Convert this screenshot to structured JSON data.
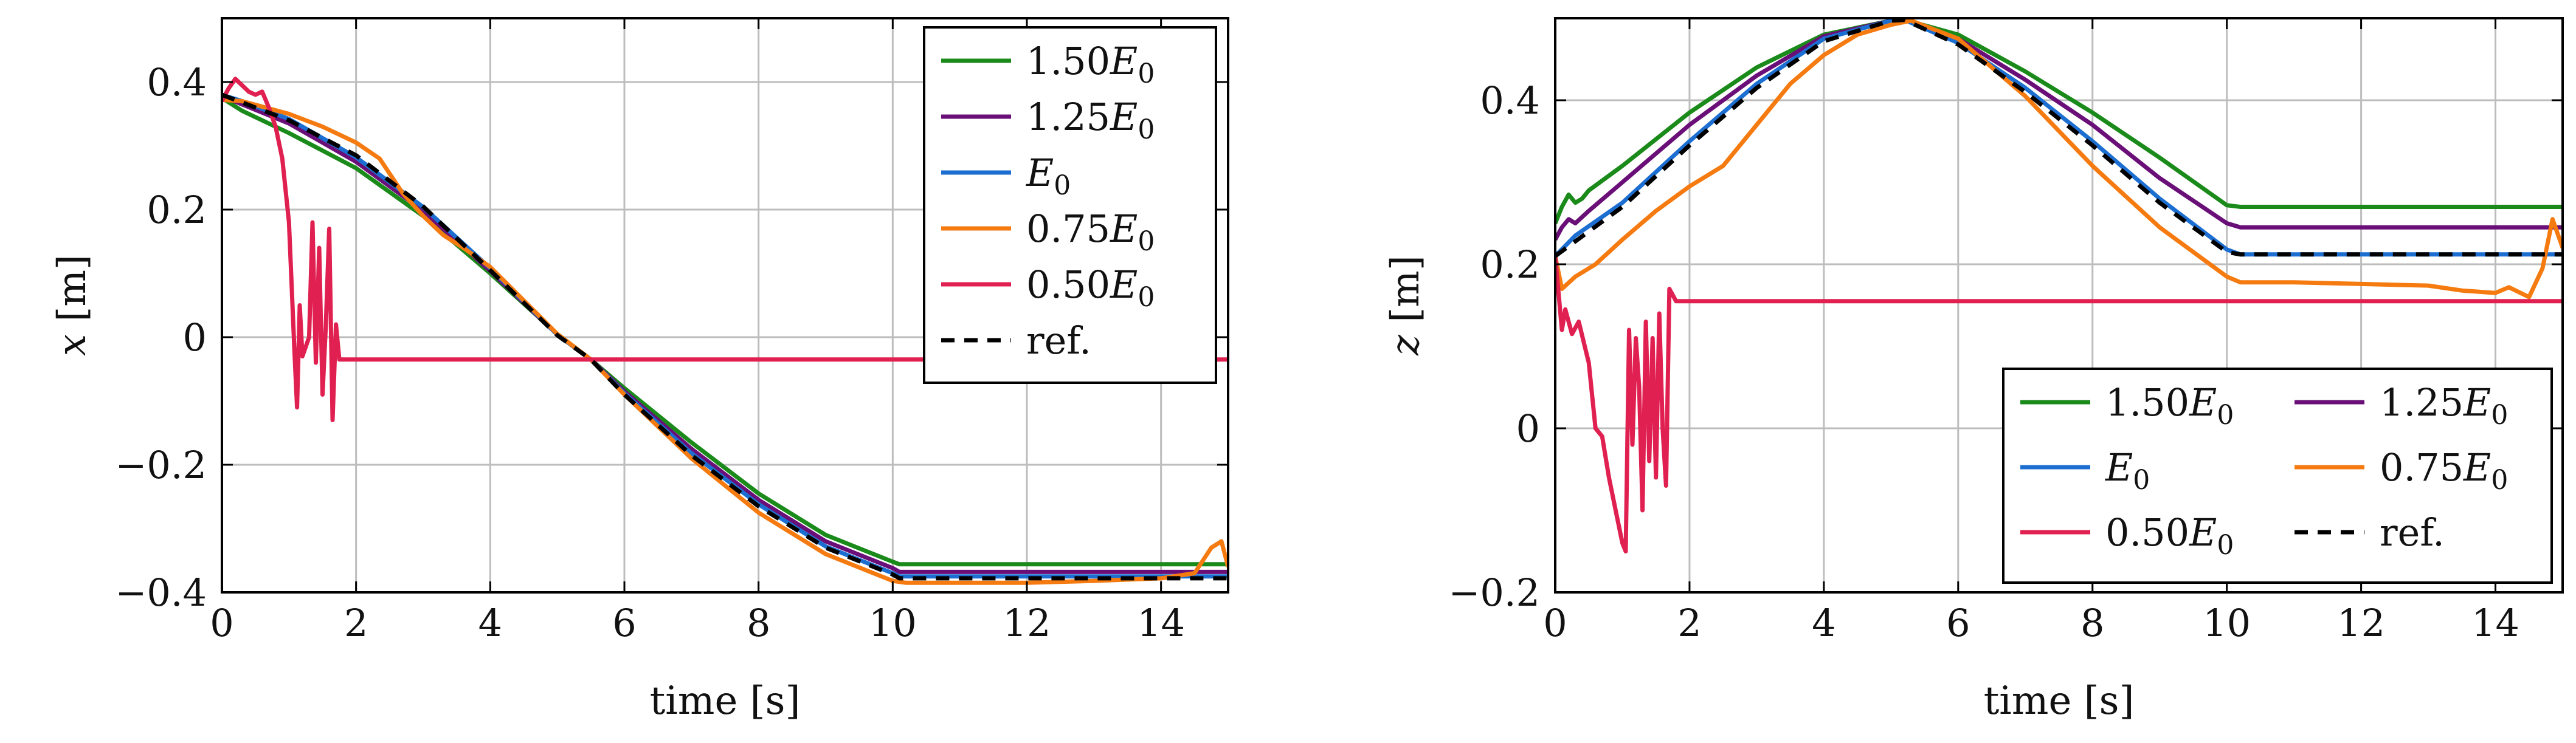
{
  "chart_data": [
    {
      "type": "line",
      "xlabel": "time [s]",
      "ylabel_var": "x",
      "ylabel_unit": "[m]",
      "xlim": [
        0,
        15
      ],
      "ylim": [
        -0.4,
        0.5
      ],
      "x_ticks": [
        0,
        2,
        4,
        6,
        8,
        10,
        12,
        14
      ],
      "x_tick_labels": [
        "0",
        "2",
        "4",
        "6",
        "8",
        "10",
        "12",
        "14"
      ],
      "y_ticks": [
        -0.4,
        -0.2,
        0,
        0.2,
        0.4
      ],
      "y_tick_labels": [
        "−0.4",
        "−0.2",
        "0",
        "0.2",
        "0.4"
      ],
      "grid": true,
      "legend_placement": "top-right",
      "legend_columns": 1,
      "series": [
        {
          "name": "1.50E0",
          "coef": "1.50",
          "color": "#1a8a1a",
          "dash": false,
          "x": [
            0,
            0.3,
            1,
            2,
            3,
            4,
            5,
            5.5,
            6,
            7,
            8,
            9,
            10,
            10.1,
            15
          ],
          "y": [
            0.375,
            0.355,
            0.32,
            0.265,
            0.19,
            0.1,
            0.005,
            -0.035,
            -0.08,
            -0.165,
            -0.245,
            -0.31,
            -0.352,
            -0.356,
            -0.356
          ]
        },
        {
          "name": "1.25E0",
          "coef": "1.25",
          "color": "#6a0f78",
          "dash": false,
          "x": [
            0,
            0.3,
            1,
            2,
            3,
            4,
            5,
            5.5,
            6,
            7,
            8,
            9,
            10,
            10.1,
            15
          ],
          "y": [
            0.378,
            0.365,
            0.335,
            0.275,
            0.198,
            0.104,
            0.004,
            -0.035,
            -0.085,
            -0.175,
            -0.255,
            -0.32,
            -0.362,
            -0.368,
            -0.368
          ]
        },
        {
          "name": "E0",
          "coef": "",
          "color": "#1c6fd1",
          "dash": false,
          "x": [
            0,
            0.3,
            1,
            2,
            3,
            4,
            5,
            5.5,
            6,
            7,
            8,
            9,
            10,
            10.1,
            15
          ],
          "y": [
            0.38,
            0.37,
            0.342,
            0.282,
            0.204,
            0.108,
            0.004,
            -0.035,
            -0.088,
            -0.182,
            -0.262,
            -0.328,
            -0.37,
            -0.375,
            -0.375
          ]
        },
        {
          "name": "0.75E0",
          "coef": "0.75",
          "color": "#f57a10",
          "dash": false,
          "x": [
            0,
            0.3,
            1,
            1.5,
            2,
            2.35,
            2.7,
            3,
            3.3,
            3.6,
            4,
            5,
            5.5,
            6,
            7,
            8,
            9,
            10,
            10.2,
            11,
            12,
            13,
            14,
            14.5,
            14.75,
            14.9,
            15
          ],
          "y": [
            0.372,
            0.37,
            0.35,
            0.33,
            0.305,
            0.28,
            0.225,
            0.19,
            0.16,
            0.14,
            0.11,
            0.005,
            -0.035,
            -0.09,
            -0.19,
            -0.275,
            -0.34,
            -0.382,
            -0.385,
            -0.385,
            -0.385,
            -0.382,
            -0.378,
            -0.37,
            -0.33,
            -0.32,
            -0.36
          ]
        },
        {
          "name": "0.50E0",
          "coef": "0.50",
          "color": "#e02050",
          "dash": false,
          "x": [
            0,
            0.1,
            0.2,
            0.3,
            0.4,
            0.5,
            0.6,
            0.7,
            0.8,
            0.9,
            1.0,
            1.08,
            1.12,
            1.16,
            1.2,
            1.3,
            1.35,
            1.4,
            1.45,
            1.5,
            1.55,
            1.6,
            1.65,
            1.7,
            1.75,
            1.85,
            15
          ],
          "y": [
            0.37,
            0.39,
            0.405,
            0.395,
            0.385,
            0.38,
            0.385,
            0.36,
            0.33,
            0.28,
            0.18,
            -0.02,
            -0.11,
            0.05,
            -0.03,
            0.0,
            0.18,
            -0.04,
            0.14,
            -0.09,
            0.02,
            0.17,
            -0.13,
            0.02,
            -0.035,
            -0.035,
            -0.035
          ]
        },
        {
          "name": "ref.",
          "coef": "",
          "color": "#000000",
          "dash": true,
          "x": [
            0,
            1,
            2,
            3,
            4,
            5,
            5.5,
            6,
            7,
            8,
            9,
            10,
            10.1,
            15
          ],
          "y": [
            0.38,
            0.34,
            0.285,
            0.205,
            0.105,
            0.003,
            -0.035,
            -0.09,
            -0.185,
            -0.265,
            -0.33,
            -0.372,
            -0.378,
            -0.378
          ]
        }
      ]
    },
    {
      "type": "line",
      "xlabel": "time [s]",
      "ylabel_var": "z",
      "ylabel_unit": "[m]",
      "xlim": [
        0,
        15
      ],
      "ylim": [
        -0.2,
        0.5
      ],
      "x_ticks": [
        0,
        2,
        4,
        6,
        8,
        10,
        12,
        14
      ],
      "x_tick_labels": [
        "0",
        "2",
        "4",
        "6",
        "8",
        "10",
        "12",
        "14"
      ],
      "y_ticks": [
        -0.2,
        0,
        0.2,
        0.4
      ],
      "y_tick_labels": [
        "−0.2",
        "0",
        "0.2",
        "0.4"
      ],
      "grid": true,
      "legend_placement": "bottom-right",
      "legend_columns": 2,
      "series": [
        {
          "name": "1.50E0",
          "coef": "1.50",
          "color": "#1a8a1a",
          "dash": false,
          "x": [
            0,
            0.1,
            0.2,
            0.3,
            0.4,
            0.5,
            1,
            2,
            3,
            4,
            5,
            5.2,
            6,
            7,
            8,
            9,
            10,
            10.2,
            15
          ],
          "y": [
            0.25,
            0.27,
            0.285,
            0.275,
            0.28,
            0.29,
            0.32,
            0.385,
            0.44,
            0.48,
            0.497,
            0.498,
            0.48,
            0.435,
            0.385,
            0.33,
            0.272,
            0.27,
            0.27
          ]
        },
        {
          "name": "1.25E0",
          "coef": "1.25",
          "color": "#6a0f78",
          "dash": false,
          "x": [
            0,
            0.1,
            0.2,
            0.3,
            0.5,
            1,
            2,
            3,
            4,
            5,
            5.2,
            6,
            7,
            8,
            9,
            10,
            10.2,
            15
          ],
          "y": [
            0.23,
            0.245,
            0.255,
            0.25,
            0.265,
            0.3,
            0.37,
            0.43,
            0.478,
            0.497,
            0.498,
            0.475,
            0.425,
            0.37,
            0.305,
            0.25,
            0.245,
            0.245
          ]
        },
        {
          "name": "E0",
          "coef": "",
          "color": "#1c6fd1",
          "dash": false,
          "x": [
            0,
            0.3,
            1,
            2,
            3,
            4,
            5,
            5.2,
            6,
            7,
            8,
            9,
            10,
            10.2,
            15
          ],
          "y": [
            0.21,
            0.235,
            0.275,
            0.35,
            0.42,
            0.475,
            0.497,
            0.498,
            0.47,
            0.415,
            0.35,
            0.28,
            0.218,
            0.212,
            0.212
          ]
        },
        {
          "name": "0.75E0",
          "coef": "0.75",
          "color": "#f57a10",
          "dash": false,
          "x": [
            0,
            0.1,
            0.3,
            0.6,
            1,
            1.5,
            2,
            2.5,
            3,
            3.5,
            4,
            4.5,
            5,
            5.3,
            6,
            7,
            8,
            9,
            10,
            10.2,
            11,
            12,
            13,
            13.5,
            14,
            14.2,
            14.5,
            14.7,
            14.85,
            15
          ],
          "y": [
            0.21,
            0.17,
            0.185,
            0.2,
            0.23,
            0.265,
            0.295,
            0.32,
            0.37,
            0.42,
            0.455,
            0.48,
            0.492,
            0.497,
            0.475,
            0.405,
            0.32,
            0.245,
            0.185,
            0.178,
            0.178,
            0.176,
            0.174,
            0.168,
            0.165,
            0.172,
            0.16,
            0.195,
            0.255,
            0.22
          ]
        },
        {
          "name": "0.50E0",
          "coef": "0.50",
          "color": "#e02050",
          "dash": false,
          "x": [
            0,
            0.1,
            0.15,
            0.25,
            0.35,
            0.5,
            0.6,
            0.7,
            0.8,
            0.9,
            1.0,
            1.05,
            1.1,
            1.15,
            1.2,
            1.25,
            1.3,
            1.35,
            1.4,
            1.45,
            1.5,
            1.55,
            1.6,
            1.65,
            1.7,
            1.8,
            15
          ],
          "y": [
            0.21,
            0.12,
            0.145,
            0.115,
            0.13,
            0.08,
            0.0,
            -0.01,
            -0.06,
            -0.1,
            -0.14,
            -0.15,
            0.12,
            -0.02,
            0.11,
            0.05,
            -0.1,
            0.13,
            -0.04,
            0.11,
            -0.06,
            0.14,
            0.0,
            -0.07,
            0.17,
            0.155,
            0.155
          ]
        },
        {
          "name": "ref.",
          "coef": "",
          "color": "#000000",
          "dash": true,
          "x": [
            0,
            1,
            2,
            3,
            4,
            5,
            5.2,
            6,
            7,
            8,
            9,
            10,
            10.2,
            15
          ],
          "y": [
            0.21,
            0.27,
            0.345,
            0.415,
            0.472,
            0.497,
            0.498,
            0.468,
            0.41,
            0.345,
            0.275,
            0.215,
            0.212,
            0.212
          ]
        }
      ]
    }
  ]
}
